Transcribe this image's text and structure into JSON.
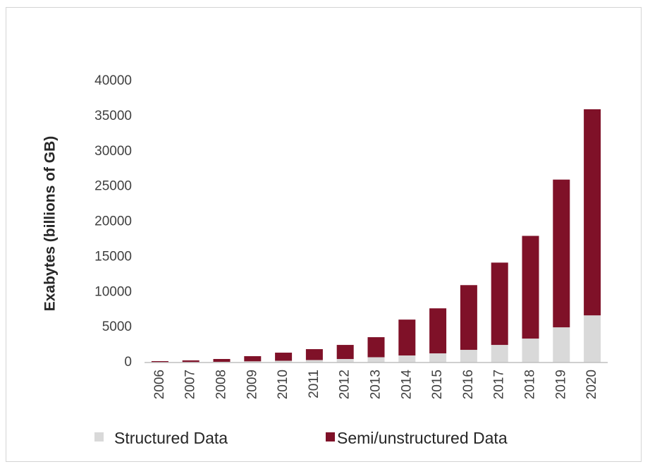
{
  "chart_data": {
    "type": "bar",
    "stacked": true,
    "categories": [
      "2006",
      "2007",
      "2008",
      "2009",
      "2010",
      "2011",
      "2012",
      "2013",
      "2014",
      "2015",
      "2016",
      "2017",
      "2018",
      "2019",
      "2020"
    ],
    "series": [
      {
        "name": "Structured Data",
        "color": "#d9d9d9",
        "values": [
          40,
          60,
          100,
          170,
          250,
          350,
          500,
          750,
          1000,
          1300,
          1800,
          2500,
          3400,
          5000,
          6700
        ]
      },
      {
        "name": "Semi/unstructured Data",
        "color": "#7f1128",
        "values": [
          160,
          240,
          400,
          730,
          1150,
          1550,
          2000,
          2850,
          5100,
          6400,
          9200,
          11700,
          14600,
          21000,
          29300
        ]
      }
    ],
    "ylabel": "Exabytes (billions of GB)",
    "xlabel": "",
    "ylim": [
      0,
      40000
    ],
    "yticks": [
      "0",
      "5000",
      "10000",
      "15000",
      "20000",
      "25000",
      "30000",
      "35000",
      "40000"
    ],
    "yticks_values": [
      0,
      5000,
      10000,
      15000,
      20000,
      25000,
      30000,
      35000,
      40000
    ],
    "grid": false,
    "legend": "bottom"
  }
}
